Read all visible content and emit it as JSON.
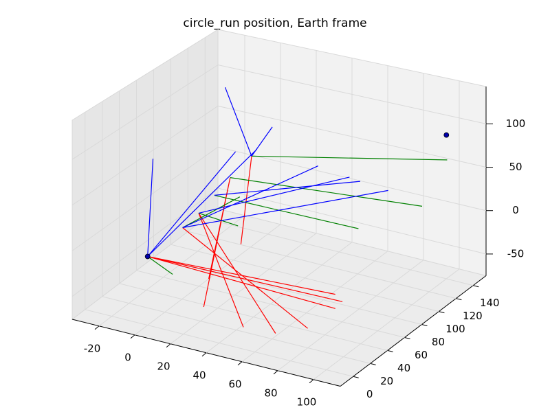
{
  "chart_data": {
    "type": "line3d",
    "title": "circle_run position, Earth frame",
    "xlim": [
      -35,
      115
    ],
    "ylim": [
      -15,
      155
    ],
    "zlim": [
      -75,
      143
    ],
    "xticks": [
      -20,
      0,
      20,
      40,
      60,
      80,
      100
    ],
    "yticks": [
      0,
      20,
      40,
      60,
      80,
      100,
      120,
      140
    ],
    "zticks": [
      -50,
      0,
      50,
      100
    ],
    "grid": true,
    "series": [
      {
        "type": "line",
        "color": "#ff0000",
        "x": [
          19,
          62,
          null,
          19,
          44,
          null,
          39,
          33,
          null,
          27,
          15,
          null,
          27,
          17,
          null,
          0,
          105,
          null,
          0,
          109,
          null,
          0,
          105,
          null,
          10,
          80
        ],
        "y": [
          20,
          20,
          null,
          20,
          20,
          null,
          40,
          40,
          null,
          40,
          40,
          null,
          40,
          30,
          null,
          0,
          0,
          null,
          0,
          0,
          null,
          0,
          0,
          null,
          20,
          20
        ],
        "z": [
          43,
          -68,
          null,
          43,
          -70,
          null,
          102,
          2,
          null,
          73,
          -45,
          null,
          73,
          -68,
          null,
          0,
          7,
          null,
          0,
          1,
          null,
          0,
          -8,
          null,
          23,
          -54
        ]
      },
      {
        "type": "line",
        "color": "#008000",
        "x": [
          39,
          110,
          null,
          27,
          96,
          null,
          23,
          70,
          null,
          19,
          41,
          null,
          10,
          42,
          null,
          0,
          14
        ],
        "y": [
          40,
          120,
          null,
          40,
          120,
          null,
          30,
          100,
          null,
          20,
          20,
          null,
          20,
          20,
          null,
          0,
          0
        ],
        "z": [
          102,
          79,
          null,
          73,
          20,
          null,
          58,
          -4,
          null,
          43,
          39,
          null,
          23,
          71,
          null,
          0,
          -13
        ]
      },
      {
        "type": "line",
        "color": "#0000ff",
        "x": [
          39,
          5,
          null,
          39,
          41,
          null,
          0,
          3,
          null,
          0,
          42,
          null,
          0,
          30,
          null,
          10,
          57,
          null,
          19,
          65,
          null,
          23,
          71,
          null,
          10,
          77
        ],
        "y": [
          40,
          80,
          null,
          40,
          60,
          null,
          0,
          0,
          null,
          0,
          40,
          null,
          0,
          40,
          null,
          20,
          80,
          null,
          20,
          100,
          null,
          30,
          100,
          null,
          20,
          120
        ],
        "z": [
          102,
          140,
          null,
          102,
          123,
          null,
          0,
          108,
          null,
          0,
          111,
          null,
          0,
          103,
          null,
          23,
          74,
          null,
          43,
          52,
          null,
          58,
          50,
          null,
          23,
          29
        ]
      },
      {
        "type": "scatter",
        "color": "#0000aa",
        "x": [
          0,
          100
        ],
        "y": [
          0,
          140
        ],
        "z": [
          0,
          90
        ]
      }
    ]
  }
}
